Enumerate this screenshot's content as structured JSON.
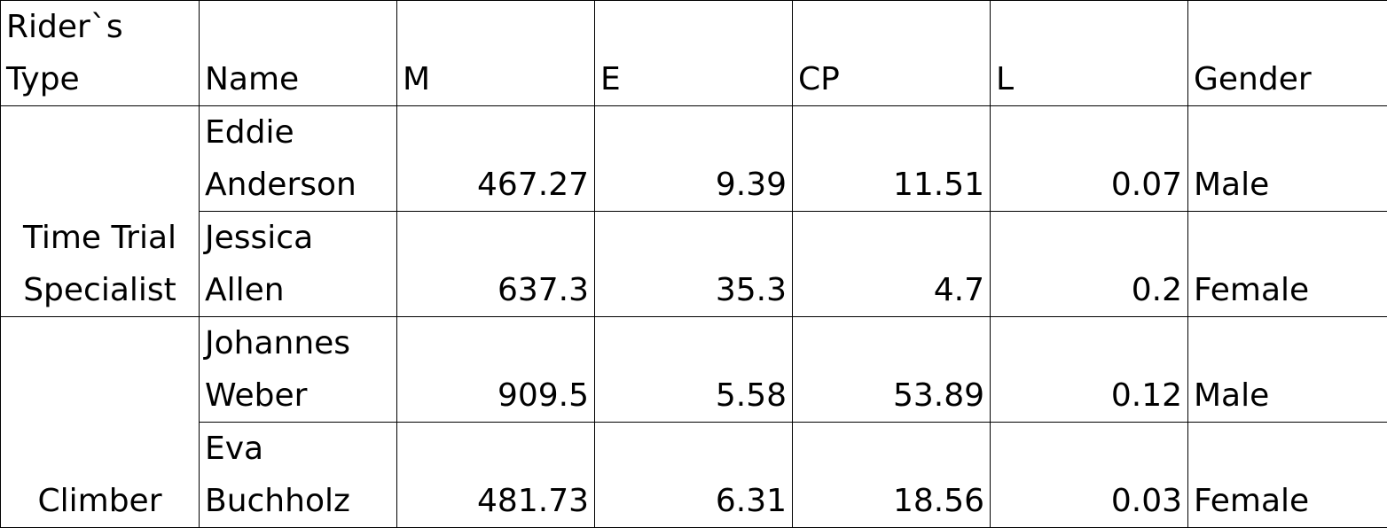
{
  "header": {
    "type_line1": "Rider`s",
    "type_line2": "Type",
    "name": "Name",
    "m": "M",
    "e": "E",
    "cp": "CP",
    "l": "L",
    "gender": "Gender"
  },
  "groups": [
    {
      "type_line1": "Time Trial",
      "type_line2": "Specialist",
      "rows": [
        {
          "name_line1": "Eddie",
          "name_line2": "Anderson",
          "m": "467.27",
          "e": "9.39",
          "cp": "11.51",
          "l": "0.07",
          "gender": "Male"
        },
        {
          "name_line1": "Jessica",
          "name_line2": "Allen",
          "m": "637.3",
          "e": "35.3",
          "cp": "4.7",
          "l": "0.2",
          "gender": "Female"
        }
      ]
    },
    {
      "type_line1": "Climber",
      "rows": [
        {
          "name_line1": "Johannes",
          "name_line2": "Weber",
          "m": "909.5",
          "e": "5.58",
          "cp": "53.89",
          "l": "0.12",
          "gender": "Male"
        },
        {
          "name_line1": "Eva",
          "name_line2": "Buchholz",
          "m": "481.73",
          "e": "6.31",
          "cp": "18.56",
          "l": "0.03",
          "gender": "Female"
        }
      ]
    }
  ]
}
